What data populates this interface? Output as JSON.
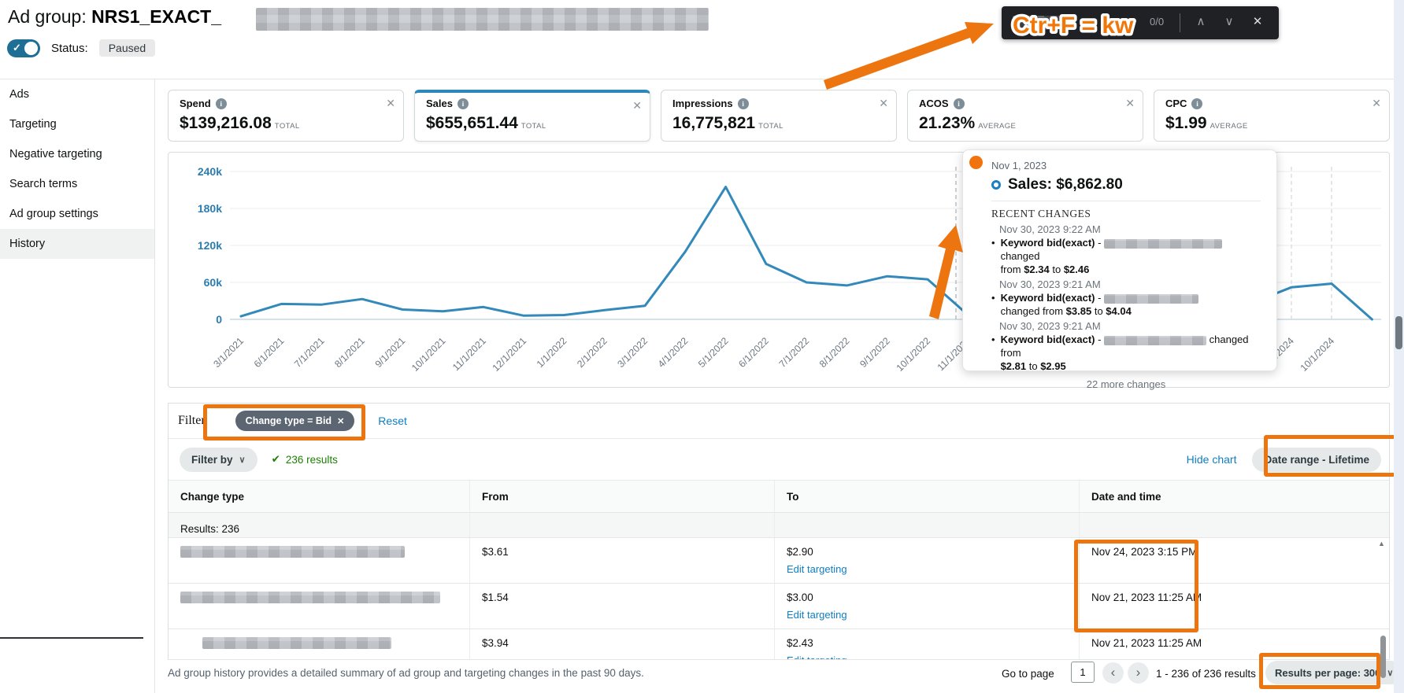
{
  "header": {
    "title_prefix": "Ad group: ",
    "title_name": "NRS1_EXACT_",
    "status_label": "Status:",
    "status_value": "Paused"
  },
  "find_bar": {
    "annotation_text": "Ctr+F = kw",
    "match_counter": "0/0"
  },
  "icons": {
    "close": "✕",
    "info": "i",
    "check": "✓",
    "results_check": "✔",
    "caret_down": "∨",
    "chevron_up": "∧",
    "chevron_down": "∨",
    "prev": "‹",
    "next": "›",
    "bullet": "•",
    "scroll_up_triangle": "▲"
  },
  "sidebar": {
    "items": [
      {
        "label": "Ads"
      },
      {
        "label": "Targeting"
      },
      {
        "label": "Negative targeting"
      },
      {
        "label": "Search terms"
      },
      {
        "label": "Ad group settings"
      },
      {
        "label": "History"
      }
    ],
    "active_item": "History"
  },
  "metric_cards": {
    "cards": [
      {
        "label": "Spend",
        "value": "$139,216.08",
        "unit": "TOTAL",
        "selected": false
      },
      {
        "label": "Sales",
        "value": "$655,651.44",
        "unit": "TOTAL",
        "selected": true
      },
      {
        "label": "Impressions",
        "value": "16,775,821",
        "unit": "TOTAL",
        "selected": false
      },
      {
        "label": "ACOS",
        "value": "21.23%",
        "unit": "AVERAGE",
        "selected": false
      },
      {
        "label": "CPC",
        "value": "$1.99",
        "unit": "AVERAGE",
        "selected": false
      }
    ]
  },
  "chart_data": {
    "type": "line",
    "title": "",
    "series_name": "Sales",
    "line_color": "#3389ba",
    "x_labels": [
      "3/1/2021",
      "6/1/2021",
      "7/1/2021",
      "8/1/2021",
      "9/1/2021",
      "10/1/2021",
      "11/1/2021",
      "12/1/2021",
      "1/1/2022",
      "2/1/2022",
      "3/1/2022",
      "4/1/2022",
      "5/1/2022",
      "6/1/2022",
      "7/1/2022",
      "8/1/2022",
      "9/1/2022",
      "10/1/2022",
      "11/1/2023",
      "",
      "",
      "",
      "",
      "",
      "",
      "",
      "9/1/2024",
      "10/1/2024",
      ""
    ],
    "values": [
      5000,
      25000,
      24000,
      33000,
      16000,
      13000,
      20000,
      6000,
      7000,
      15000,
      22000,
      110000,
      215000,
      90000,
      60000,
      55000,
      70000,
      65000,
      7000,
      6000,
      5000,
      8000,
      14000,
      22000,
      30000,
      26000,
      52000,
      58000,
      0
    ],
    "yticks": [
      {
        "label": "240k",
        "value": 240000
      },
      {
        "label": "180k",
        "value": 180000
      },
      {
        "label": "120k",
        "value": 120000
      },
      {
        "label": "60k",
        "value": 60000
      },
      {
        "label": "0",
        "value": 0
      }
    ],
    "ylim": [
      0,
      255000
    ],
    "grid": true,
    "x_label_rotation": -45,
    "hovered_point": {
      "date": "Nov 1, 2023",
      "value": 6862.8
    }
  },
  "tooltip": {
    "date": "Nov 1, 2023",
    "metric_label": "Sales:",
    "metric_value": "$6,862.80",
    "section_header": "RECENT CHANGES",
    "changes": [
      {
        "time": "Nov 30, 2023 9:22 AM",
        "kw": "Keyword bid(exact)",
        "dash": " - ",
        "mid": " changed",
        "line2_pre": "from ",
        "from": "$2.34",
        "to_word": " to ",
        "to": "$2.46"
      },
      {
        "time": "Nov 30, 2023 9:21 AM",
        "kw": "Keyword bid(exact)",
        "dash": " - ",
        "mid": "",
        "line2_pre": "changed from ",
        "from": "$3.85",
        "to_word": " to ",
        "to": "$4.04"
      },
      {
        "time": "Nov 30, 2023 9:21 AM",
        "kw": "Keyword bid(exact)",
        "dash": " - ",
        "mid": " changed from",
        "line2_pre": "",
        "from": "$2.81",
        "to_word": " to ",
        "to": "$2.95"
      }
    ],
    "more_changes": "22 more changes"
  },
  "filter": {
    "label": "Filter",
    "chip_text": "Change type = Bid",
    "reset_label": "Reset",
    "filter_by_label": "Filter by",
    "results_text": "236 results",
    "hide_chart_label": "Hide chart",
    "date_range_label": "Date range - Lifetime"
  },
  "table": {
    "columns": [
      "Change type",
      "From",
      "To",
      "Date and time"
    ],
    "results_summary": "Results: 236",
    "edit_link": "Edit targeting",
    "rows": [
      {
        "from": "$3.61",
        "to": "$2.90",
        "date": "Nov 24, 2023 3:15 PM"
      },
      {
        "from": "$1.54",
        "to": "$3.00",
        "date": "Nov 21, 2023 11:25 AM"
      },
      {
        "from": "$3.94",
        "to": "$2.43",
        "date": "Nov 21, 2023 11:25 AM"
      }
    ]
  },
  "footer": {
    "summary": "Ad group history provides a detailed summary of ad group and targeting changes in the past 90 days.",
    "go_to_page_label": "Go to page",
    "page_input_value": "1",
    "results_range": "1 - 236 of 236 results",
    "results_per_page_label": "Results per page: 300"
  },
  "colors": {
    "accent_blue": "#2d87b8",
    "link_blue": "#0f7ec2",
    "annotation_orange": "#ed750f",
    "success_green": "#1d8102",
    "toggle_blue": "#1f6e96"
  }
}
